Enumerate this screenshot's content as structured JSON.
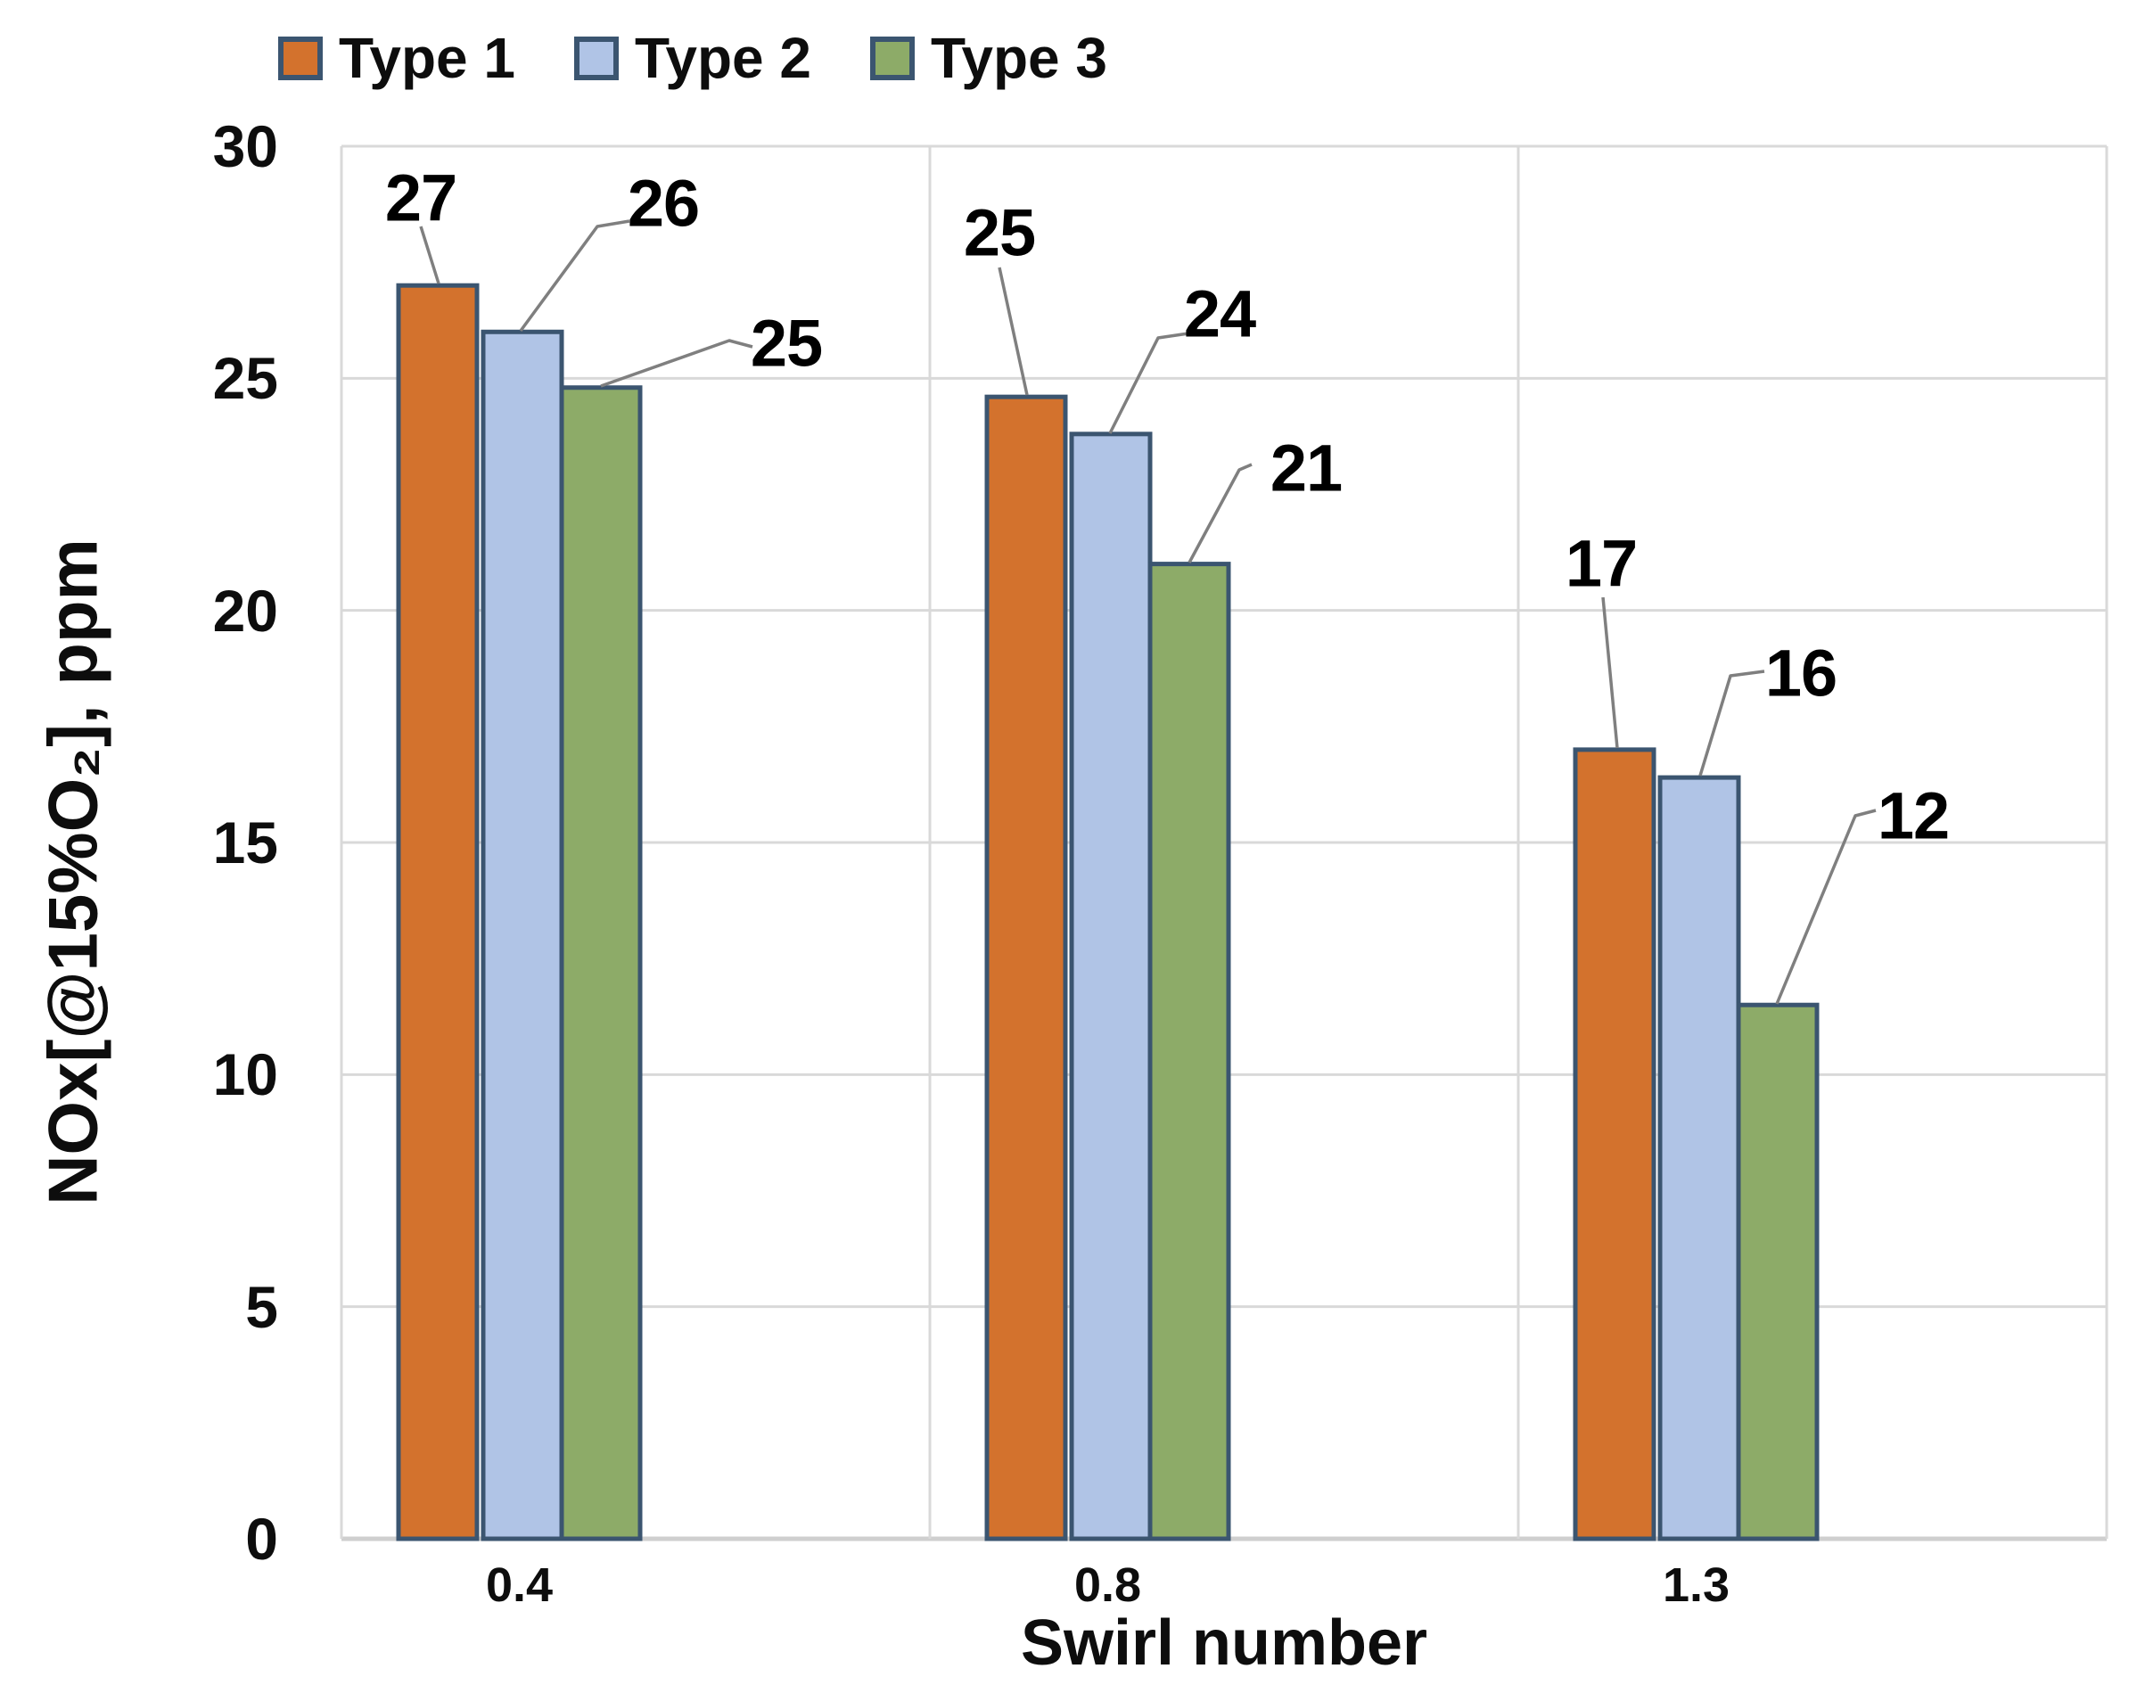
{
  "chart_data": {
    "type": "bar",
    "title": "",
    "categories": [
      "0.4",
      "0.8",
      "1.3"
    ],
    "series": [
      {
        "name": "Type 1",
        "color": "#D3722D",
        "values": [
          27,
          25,
          17
        ],
        "rendered_heights": [
          27.0,
          24.6,
          17.0
        ]
      },
      {
        "name": "Type 2",
        "color": "#B0C4E6",
        "values": [
          26,
          24,
          16
        ],
        "rendered_heights": [
          26.0,
          23.8,
          16.4
        ]
      },
      {
        "name": "Type 3",
        "color": "#8DAB68",
        "values": [
          25,
          21,
          12
        ],
        "rendered_heights": [
          24.8,
          21.0,
          11.5
        ]
      }
    ],
    "xlabel": "Swirl number",
    "ylabel": "NOx[@15%O₂], ppm",
    "ylim": [
      0,
      30
    ],
    "yticks": [
      0,
      5,
      10,
      15,
      20,
      25,
      30
    ],
    "grid": "horizontal gridlines every 5 + vertical category separators",
    "legend_position": "top-left",
    "data_labels": true,
    "colors": {
      "bar_border": "#3B5570",
      "gridline": "#D9D9D9",
      "baseline": "#CFCFCF",
      "leader_line": "#7F7F7F",
      "text": "#0d0d0d"
    }
  }
}
